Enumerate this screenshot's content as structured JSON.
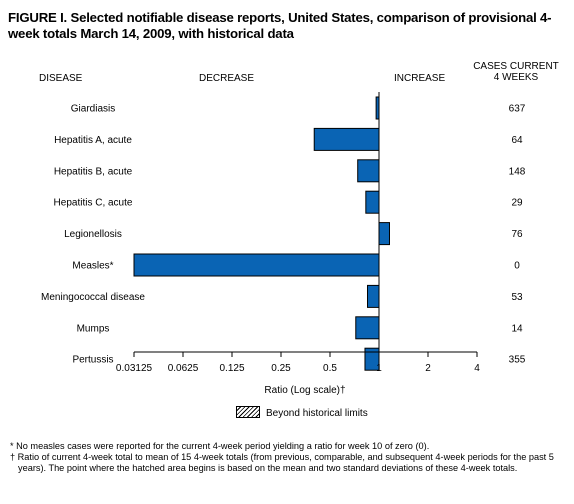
{
  "title": "FIGURE I. Selected notifiable disease reports, United States, comparison of provisional 4-week totals March 14, 2009, with historical data",
  "headers": {
    "disease": "DISEASE",
    "decrease": "DECREASE",
    "increase": "INCREASE",
    "cases_line1": "CASES CURRENT",
    "cases_line2": "4 WEEKS"
  },
  "legend": {
    "label": "Beyond historical limits"
  },
  "footnotes": {
    "star": "* No measles cases were reported for the current 4-week period yielding a ratio for week 10 of zero (0).",
    "dagger": "† Ratio of current 4-week total to mean of 15 4-week totals (from previous, comparable, and subsequent 4-week periods for the past 5 years). The point where the hatched area begins is based on the mean and two standard deviations of these 4-week totals."
  },
  "colors": {
    "bar": "#0a64b4"
  },
  "chart_data": {
    "type": "bar",
    "orientation": "horizontal",
    "scale": "log2",
    "xlabel": "Ratio (Log scale)†",
    "xlim": [
      0.03125,
      4
    ],
    "xticks": [
      "0.03125",
      "0.0625",
      "0.125",
      "0.25",
      "0.5",
      "1",
      "2",
      "4"
    ],
    "tick_values": [
      0.03125,
      0.0625,
      0.125,
      0.25,
      0.5,
      1,
      2,
      4
    ],
    "baseline": 1,
    "categories": [
      "Giardiasis",
      "Hepatitis A, acute",
      "Hepatitis B, acute",
      "Hepatitis C, acute",
      "Legionellosis",
      "Measles*",
      "Meningococcal disease",
      "Mumps",
      "Pertussis"
    ],
    "values": [
      0.96,
      0.4,
      0.74,
      0.83,
      1.16,
      0.03125,
      0.85,
      0.72,
      0.82
    ],
    "cases": [
      "637",
      "64",
      "148",
      "29",
      "76",
      "0",
      "53",
      "14",
      "355"
    ]
  }
}
